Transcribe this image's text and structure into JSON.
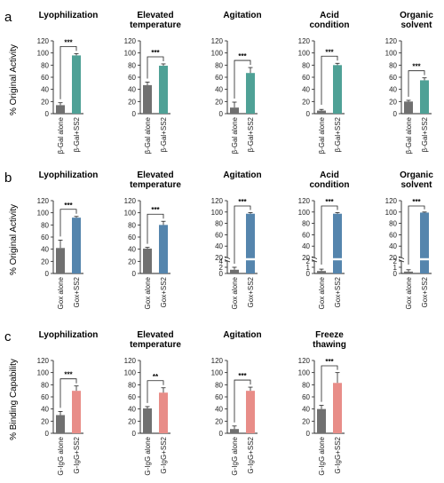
{
  "chart_data": [
    {
      "type": "bar",
      "panel": "a",
      "ylabel": "% Original Activity",
      "colors": [
        "#707070",
        "#4fa196"
      ],
      "subcharts": [
        {
          "title": [
            "Lyophilization"
          ],
          "categories": [
            "β-Gal alone",
            "β-Gal+SS2"
          ],
          "values": [
            14,
            96
          ],
          "errors": [
            4,
            3
          ],
          "significance": "***",
          "ylim": [
            0,
            120
          ],
          "yticks": [
            0,
            20,
            40,
            60,
            80,
            100,
            120
          ]
        },
        {
          "title": [
            "Elevated",
            "temperature"
          ],
          "categories": [
            "β-Gal alone",
            "β-Gal+SS2"
          ],
          "values": [
            47,
            79
          ],
          "errors": [
            5,
            3
          ],
          "significance": "***",
          "ylim": [
            0,
            120
          ],
          "yticks": [
            0,
            20,
            40,
            60,
            80,
            100,
            120
          ]
        },
        {
          "title": [
            "Agitation"
          ],
          "categories": [
            "β-Gal alone",
            "β-Gal+SS2"
          ],
          "values": [
            10,
            67
          ],
          "errors": [
            9,
            9
          ],
          "significance": "***",
          "ylim": [
            0,
            120
          ],
          "yticks": [
            0,
            20,
            40,
            60,
            80,
            100,
            120
          ]
        },
        {
          "title": [
            "Acid",
            "condition"
          ],
          "categories": [
            "β-Gal alone",
            "β-Gal+SS2"
          ],
          "values": [
            5,
            80
          ],
          "errors": [
            2,
            3
          ],
          "significance": "***",
          "ylim": [
            0,
            120
          ],
          "yticks": [
            0,
            20,
            40,
            60,
            80,
            100,
            120
          ]
        },
        {
          "title": [
            "Organic",
            "solvent"
          ],
          "categories": [
            "β-Gal alone",
            "β-Gal+SS2"
          ],
          "values": [
            20,
            55
          ],
          "errors": [
            2,
            4
          ],
          "significance": "***",
          "ylim": [
            0,
            120
          ],
          "yticks": [
            0,
            20,
            40,
            60,
            80,
            100,
            120
          ]
        }
      ]
    },
    {
      "type": "bar",
      "panel": "b",
      "ylabel": "% Original Activity",
      "colors": [
        "#707070",
        "#5585ad"
      ],
      "subcharts": [
        {
          "title": [
            "Lyophilization"
          ],
          "categories": [
            "Gox alone",
            "Gox+SS2"
          ],
          "values": [
            42,
            92
          ],
          "errors": [
            13,
            2
          ],
          "significance": "***",
          "ylim": [
            0,
            120
          ],
          "yticks": [
            0,
            20,
            40,
            60,
            80,
            100,
            120
          ]
        },
        {
          "title": [
            "Elevated",
            "temperature"
          ],
          "categories": [
            "Gox alone",
            "Gox+SS2"
          ],
          "values": [
            41,
            80
          ],
          "errors": [
            2,
            6
          ],
          "significance": "***",
          "ylim": [
            0,
            120
          ],
          "yticks": [
            0,
            20,
            40,
            60,
            80,
            100,
            120
          ]
        },
        {
          "title": [
            "Agitation"
          ],
          "categories": [
            "Gox alone",
            "Gox+SS2"
          ],
          "values": [
            1.2,
            97
          ],
          "errors": [
            0.8,
            2
          ],
          "significance": "***",
          "ylim": [
            0,
            120
          ],
          "broken_axis": {
            "lower": [
              0,
              4
            ],
            "upper": [
              20,
              120
            ]
          },
          "yticks_lower": [
            0,
            2,
            4
          ],
          "yticks_upper": [
            20,
            40,
            60,
            80,
            100,
            120
          ]
        },
        {
          "title": [
            "Acid",
            "condition"
          ],
          "categories": [
            "Gox alone",
            "Gox+SS2"
          ],
          "values": [
            0.4,
            97
          ],
          "errors": [
            0.3,
            2
          ],
          "significance": "***",
          "ylim": [
            0,
            120
          ],
          "broken_axis": {
            "lower": [
              0,
              2
            ],
            "upper": [
              20,
              120
            ]
          },
          "yticks_lower": [
            0,
            1,
            2
          ],
          "yticks_upper": [
            20,
            40,
            60,
            80,
            100,
            120
          ]
        },
        {
          "title": [
            "Organic",
            "solvent"
          ],
          "categories": [
            "Gox alone",
            "Gox+SS2"
          ],
          "values": [
            0.3,
            99
          ],
          "errors": [
            0.3,
            1
          ],
          "significance": "***",
          "ylim": [
            0,
            120
          ],
          "broken_axis": {
            "lower": [
              0,
              2
            ],
            "upper": [
              20,
              120
            ]
          },
          "yticks_lower": [
            0,
            1,
            2
          ],
          "yticks_upper": [
            20,
            40,
            60,
            80,
            100,
            120
          ]
        }
      ]
    },
    {
      "type": "bar",
      "panel": "c",
      "ylabel": "% Binding Capability",
      "colors": [
        "#707070",
        "#e88d88"
      ],
      "subcharts": [
        {
          "title": [
            "Lyophilization"
          ],
          "categories": [
            "G-IgG alone",
            "G-IgG+SS2"
          ],
          "values": [
            30,
            70
          ],
          "errors": [
            6,
            8
          ],
          "significance": "***",
          "ylim": [
            0,
            120
          ],
          "yticks": [
            0,
            20,
            40,
            60,
            80,
            100,
            120
          ]
        },
        {
          "title": [
            "Elevated",
            "temperature"
          ],
          "categories": [
            "G-IgG alone",
            "G-IgG+SS2"
          ],
          "values": [
            41,
            67
          ],
          "errors": [
            3,
            8
          ],
          "significance": "**",
          "ylim": [
            0,
            120
          ],
          "yticks": [
            0,
            20,
            40,
            60,
            80,
            100,
            120
          ]
        },
        {
          "title": [
            "Agitation"
          ],
          "categories": [
            "G-IgG alone",
            "G-IgG+SS2"
          ],
          "values": [
            7,
            70
          ],
          "errors": [
            5,
            6
          ],
          "significance": "***",
          "ylim": [
            0,
            120
          ],
          "yticks": [
            0,
            20,
            40,
            60,
            80,
            100,
            120
          ]
        },
        {
          "title": [
            "Freeze",
            "thawing"
          ],
          "categories": [
            "G-IgG alone",
            "G-IgG+SS2"
          ],
          "values": [
            40,
            83
          ],
          "errors": [
            6,
            17
          ],
          "significance": "***",
          "ylim": [
            0,
            120
          ],
          "yticks": [
            0,
            20,
            40,
            60,
            80,
            100,
            120
          ]
        }
      ]
    }
  ]
}
